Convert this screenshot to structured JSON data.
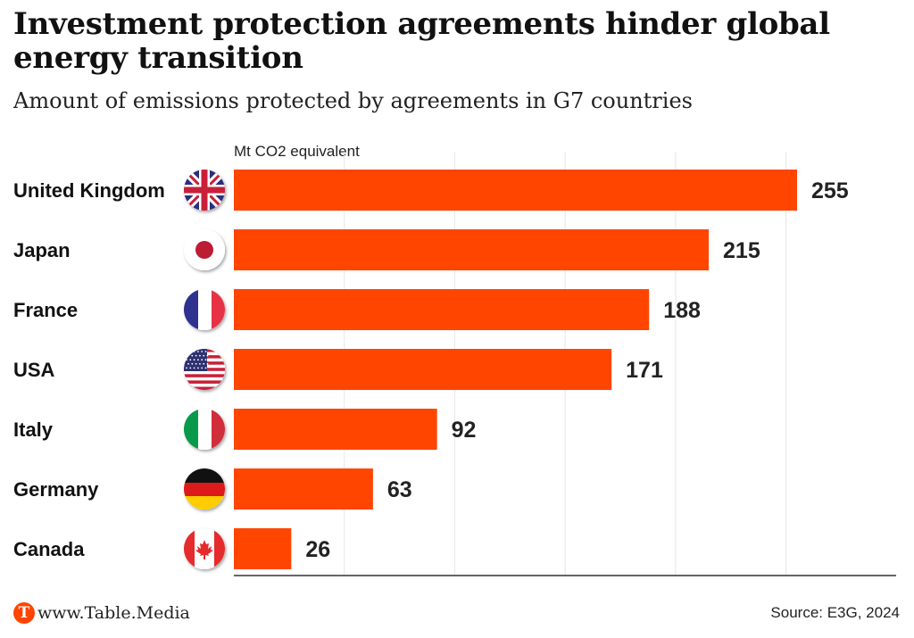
{
  "header": {
    "title": "Investment protection agreements hinder global energy transition",
    "subtitle": "Amount of emissions protected by agreements in G7 countries"
  },
  "footer": {
    "logo_letter": "T",
    "logo_text": "www.Table.Media",
    "source": "Source: E3G, 2024"
  },
  "colors": {
    "bar": "#ff4500",
    "text": "#1a1a1a",
    "grid": "#e6e6e6",
    "axis": "#333333"
  },
  "chart_data": {
    "type": "bar",
    "orientation": "horizontal",
    "title": "Investment protection agreements hinder global energy transition",
    "subtitle": "Amount of emissions protected by agreements in G7 countries",
    "unit_label": "Mt CO2 equivalent",
    "xlabel": "",
    "ylabel": "",
    "xlim": [
      0,
      280
    ],
    "grid": true,
    "gridlines": [
      50,
      100,
      150,
      200,
      250
    ],
    "legend": "none",
    "categories": [
      "United Kingdom",
      "Japan",
      "France",
      "USA",
      "Italy",
      "Germany",
      "Canada"
    ],
    "flags": [
      "flag-uk-icon",
      "flag-japan-icon",
      "flag-france-icon",
      "flag-usa-icon",
      "flag-italy-icon",
      "flag-germany-icon",
      "flag-canada-icon"
    ],
    "values": [
      255,
      215,
      188,
      171,
      92,
      63,
      26
    ]
  }
}
